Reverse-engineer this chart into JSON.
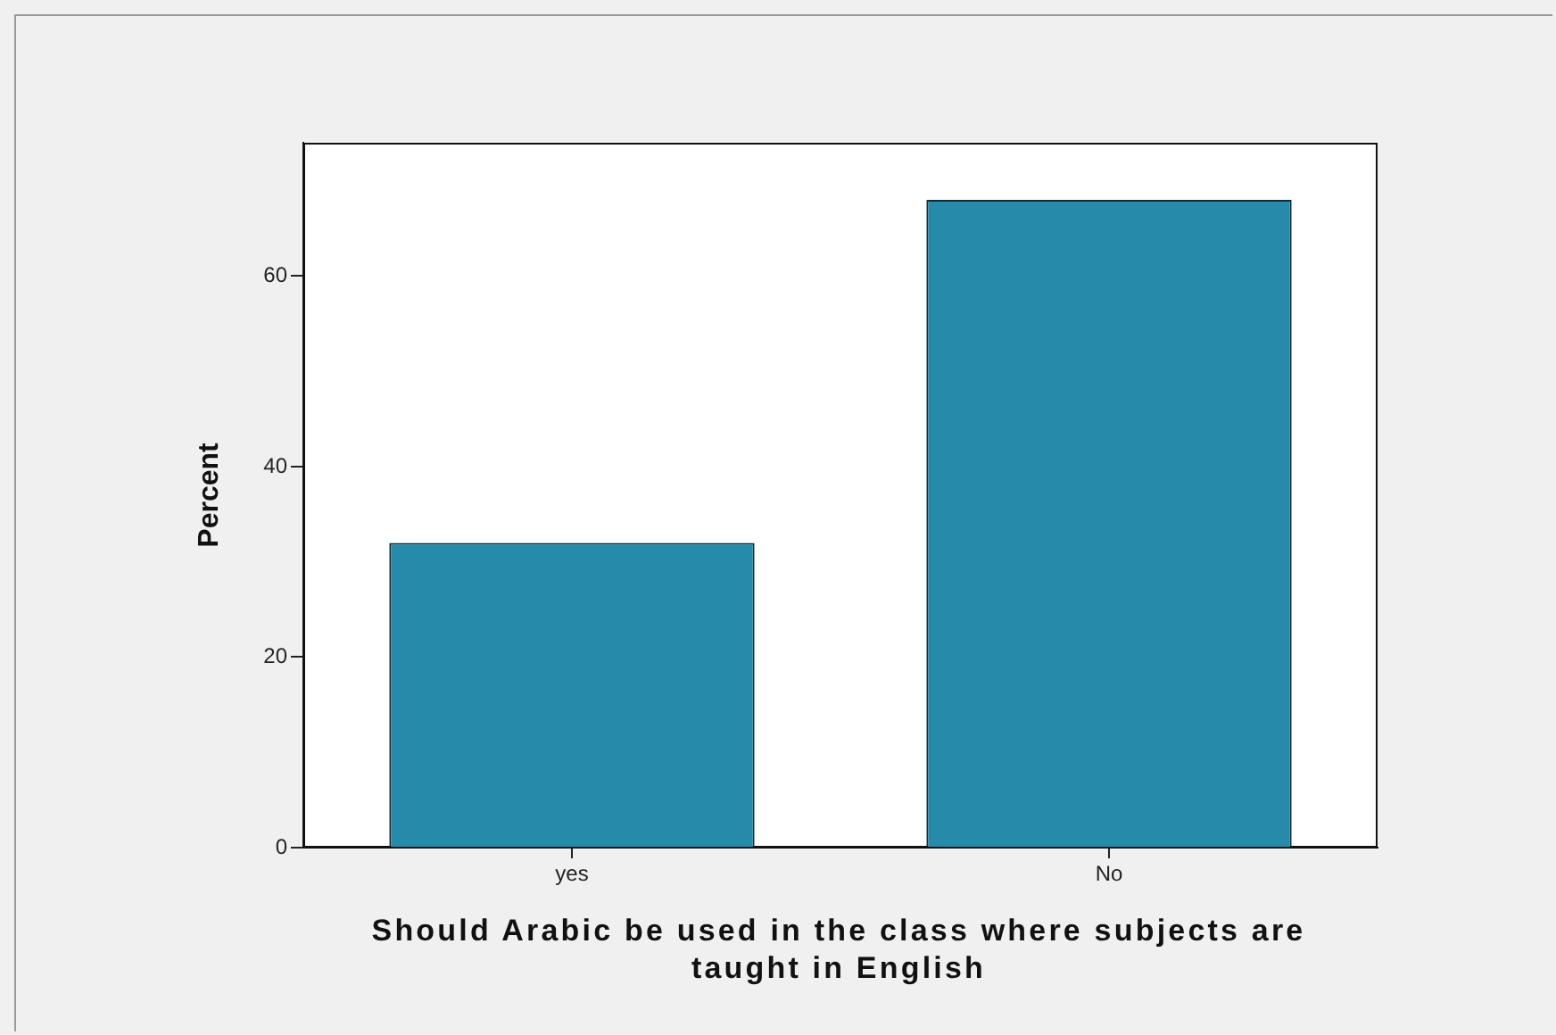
{
  "chart_data": {
    "type": "bar",
    "categories": [
      "yes",
      "No"
    ],
    "values": [
      32,
      68
    ],
    "color": "#268bab",
    "xlabel": "Should Arabic be used in the class where subjects are taught in English",
    "ylabel": "Percent",
    "ylim": [
      0,
      74
    ],
    "yticks": [
      0,
      20,
      40,
      60
    ]
  }
}
